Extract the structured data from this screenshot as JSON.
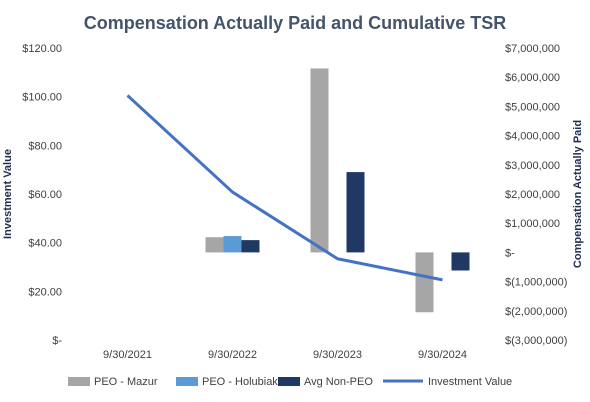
{
  "chart_data": {
    "type": "bar",
    "title": "Compensation Actually Paid and Cumulative TSR",
    "left_axis": {
      "label": "Investment Value",
      "range": [
        0,
        120
      ],
      "ticks": [
        0,
        20,
        40,
        60,
        80,
        100,
        120
      ],
      "tick_labels": [
        "$-",
        "$20.00",
        "$40.00",
        "$60.00",
        "$80.00",
        "$100.00",
        "$120.00"
      ]
    },
    "right_axis": {
      "label": "Compensation Actually Paid",
      "range": [
        -3000000,
        7000000
      ],
      "ticks": [
        -3000000,
        -2000000,
        -1000000,
        0,
        1000000,
        2000000,
        3000000,
        4000000,
        5000000,
        6000000,
        7000000
      ],
      "tick_labels": [
        "$(3,000,000)",
        "$(2,000,000)",
        "$(1,000,000)",
        "$-",
        "$1,000,000",
        "$2,000,000",
        "$3,000,000",
        "$4,000,000",
        "$5,000,000",
        "$6,000,000",
        "$7,000,000"
      ]
    },
    "categories": [
      "9/30/2021",
      "9/30/2022",
      "9/30/2023",
      "9/30/2024"
    ],
    "bar_series": [
      {
        "name": "PEO - Mazur",
        "axis": "right",
        "color": "#a6a6a6",
        "values": [
          null,
          520000,
          6300000,
          -2050000
        ]
      },
      {
        "name": "PEO - Holubiak",
        "axis": "right",
        "color": "#5b9bd5",
        "values": [
          null,
          560000,
          null,
          null
        ]
      },
      {
        "name": "Avg Non-PEO",
        "axis": "right",
        "color": "#203864",
        "values": [
          null,
          420000,
          2750000,
          -620000
        ]
      }
    ],
    "line_series": [
      {
        "name": "Investment Value",
        "axis": "left",
        "color": "#4472c4",
        "values": [
          100.5,
          60.8,
          33.4,
          24.7
        ]
      }
    ],
    "grid": false,
    "legend": "bottom"
  }
}
